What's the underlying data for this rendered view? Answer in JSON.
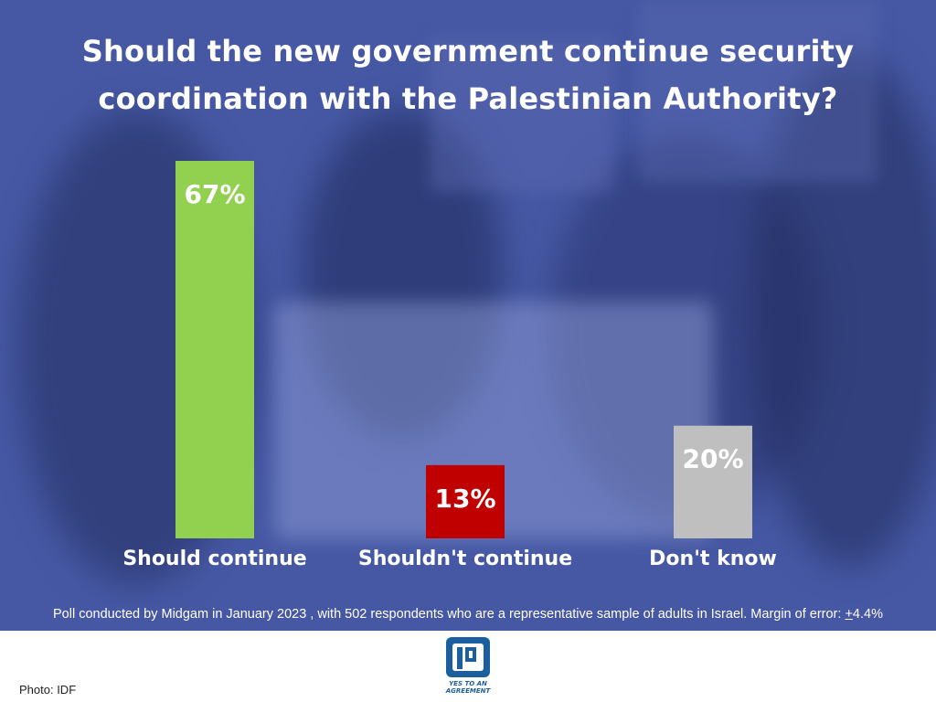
{
  "chart_data": {
    "type": "bar",
    "title": "Should the new government continue security coordination with the Palestinian Authority?",
    "categories": [
      "Should continue",
      "Shouldn't continue",
      "Don't know"
    ],
    "values": [
      67,
      13,
      20
    ],
    "value_labels": [
      "67%",
      "13%",
      "20%"
    ],
    "colors": [
      "#92d050",
      "#c00000",
      "#bfbfbf"
    ],
    "ylim": [
      0,
      67
    ],
    "grid": false,
    "legend": "none"
  },
  "note": {
    "text": "Poll conducted by Midgam in January 2023 , with 502 respondents who are a representative sample of adults in Israel. Margin of error: ",
    "pm": "+",
    "value": "4.4%"
  },
  "footer": {
    "credit": "Photo: IDF",
    "logo_text_line1": "YES TO AN",
    "logo_text_line2": "AGREEMENT",
    "logo_color": "#1b5f9e"
  },
  "theme": {
    "overlay": "#4658a4",
    "text": "#ffffff"
  }
}
